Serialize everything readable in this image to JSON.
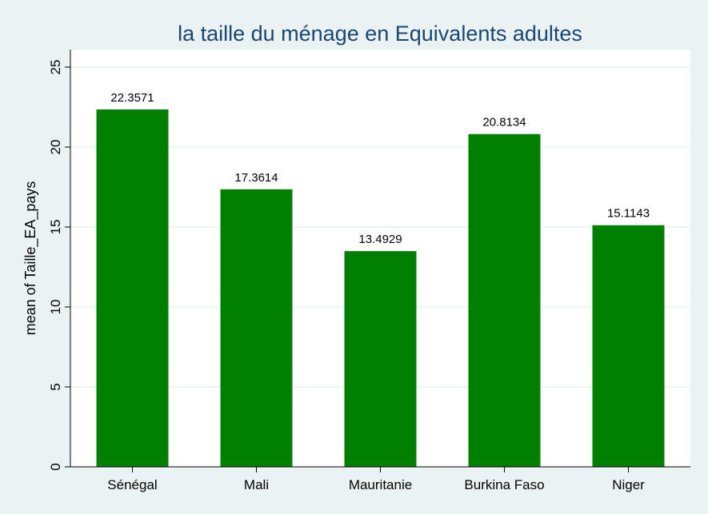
{
  "chart_data": {
    "type": "bar",
    "title": "la taille du ménage en Equivalents adultes",
    "xlabel": "",
    "ylabel": "mean of Taille_EA_pays",
    "categories": [
      "Sénégal",
      "Mali",
      "Mauritanie",
      "Burkina Faso",
      "Niger"
    ],
    "values": [
      22.3571,
      17.3614,
      13.4929,
      20.8134,
      15.1143
    ],
    "data_labels": [
      "22.3571",
      "17.3614",
      "13.4929",
      "20.8134",
      "15.1143"
    ],
    "ylim": [
      0,
      25
    ],
    "yticks": [
      0,
      5,
      10,
      15,
      20,
      25
    ],
    "grid": true,
    "legend": "none",
    "colors": {
      "bar": "#007f00",
      "background": "#eaf2f3",
      "plot_background": "#ffffff",
      "title": "#1a476f",
      "grid": "#eaf2f3"
    }
  }
}
